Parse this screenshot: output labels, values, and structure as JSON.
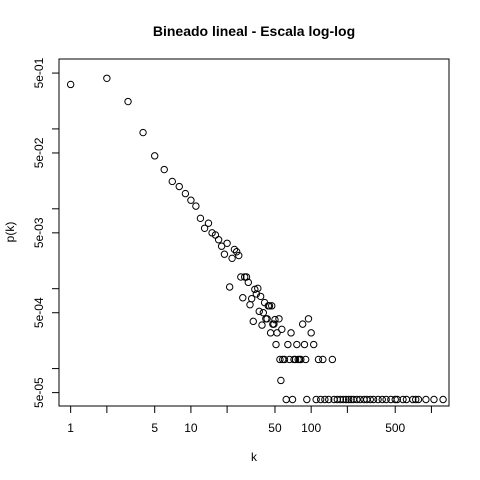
{
  "chart_data": {
    "type": "scatter",
    "title": "Bineado lineal - Escala log-log",
    "xlabel": "k",
    "ylabel": "p(k)",
    "x_scale": "log",
    "y_scale": "log",
    "xlim": [
      0.8,
      1400
    ],
    "ylim": [
      3.4e-05,
      0.75
    ],
    "x_ticks": [
      {
        "value": 1,
        "label": "1"
      },
      {
        "value": 2,
        "label": ""
      },
      {
        "value": 5,
        "label": "5"
      },
      {
        "value": 10,
        "label": "10"
      },
      {
        "value": 20,
        "label": ""
      },
      {
        "value": 50,
        "label": "50"
      },
      {
        "value": 100,
        "label": "100"
      },
      {
        "value": 200,
        "label": ""
      },
      {
        "value": 500,
        "label": "500"
      },
      {
        "value": 1000,
        "label": ""
      }
    ],
    "y_ticks": [
      {
        "value": 0.5,
        "label": "5e-01"
      },
      {
        "value": 0.1,
        "label": ""
      },
      {
        "value": 0.05,
        "label": "5e-02"
      },
      {
        "value": 0.01,
        "label": ""
      },
      {
        "value": 0.005,
        "label": "5e-03"
      },
      {
        "value": 0.001,
        "label": ""
      },
      {
        "value": 0.0005,
        "label": "5e-04"
      },
      {
        "value": 0.0001,
        "label": ""
      },
      {
        "value": 5e-05,
        "label": "5e-05"
      }
    ],
    "grid": false,
    "legend": "none",
    "points": [
      [
        1,
        0.36
      ],
      [
        2,
        0.43
      ],
      [
        3,
        0.22
      ],
      [
        4,
        0.09
      ],
      [
        5,
        0.046
      ],
      [
        6,
        0.031
      ],
      [
        7,
        0.022
      ],
      [
        8,
        0.019
      ],
      [
        9,
        0.0155
      ],
      [
        10,
        0.0128
      ],
      [
        11,
        0.0108
      ],
      [
        12,
        0.0076
      ],
      [
        13,
        0.0057
      ],
      [
        14,
        0.0066
      ],
      [
        15,
        0.005
      ],
      [
        16,
        0.0047
      ],
      [
        17,
        0.0041
      ],
      [
        18,
        0.0034
      ],
      [
        19,
        0.0027
      ],
      [
        20,
        0.0037
      ],
      [
        21,
        0.00105
      ],
      [
        22,
        0.0024
      ],
      [
        23,
        0.0031
      ],
      [
        24,
        0.0029
      ],
      [
        25,
        0.0026
      ],
      [
        26,
        0.0014
      ],
      [
        27,
        0.00077
      ],
      [
        28,
        0.0014
      ],
      [
        29,
        0.0014
      ],
      [
        30,
        0.0012
      ],
      [
        31,
        0.00063
      ],
      [
        32,
        0.00075
      ],
      [
        33,
        0.00039
      ],
      [
        34,
        0.00098
      ],
      [
        35,
        0.00086
      ],
      [
        36,
        0.00101
      ],
      [
        37,
        0.00052
      ],
      [
        38,
        0.0008
      ],
      [
        39,
        0.00035
      ],
      [
        40,
        0.0005
      ],
      [
        41,
        0.00067
      ],
      [
        42,
        0.00042
      ],
      [
        43,
        0.00042
      ],
      [
        44,
        0.00061
      ],
      [
        45,
        0.00061
      ],
      [
        46,
        0.00028
      ],
      [
        47,
        0.00061
      ],
      [
        48,
        0.00036
      ],
      [
        49,
        0.00036
      ],
      [
        50,
        0.00041
      ],
      [
        51,
        0.0002
      ],
      [
        52,
        0.00028
      ],
      [
        54,
        0.00042
      ],
      [
        55,
        0.00013
      ],
      [
        56,
        7.1e-05
      ],
      [
        57,
        0.00031
      ],
      [
        58,
        0.00013
      ],
      [
        60,
        0.00013
      ],
      [
        62,
        4.1e-05
      ],
      [
        64,
        0.0002
      ],
      [
        66,
        0.00013
      ],
      [
        68,
        0.00028
      ],
      [
        70,
        4.1e-05
      ],
      [
        72,
        0.00013
      ],
      [
        74,
        0.00013
      ],
      [
        76,
        0.0002
      ],
      [
        78,
        0.00013
      ],
      [
        80,
        0.00013
      ],
      [
        82,
        0.00013
      ],
      [
        85,
        0.00036
      ],
      [
        88,
        0.0002
      ],
      [
        90,
        0.00013
      ],
      [
        92,
        4.1e-05
      ],
      [
        95,
        0.00042
      ],
      [
        100,
        0.00028
      ],
      [
        105,
        0.0002
      ],
      [
        110,
        4.1e-05
      ],
      [
        115,
        0.00013
      ],
      [
        120,
        4.1e-05
      ],
      [
        125,
        0.00013
      ],
      [
        130,
        4.1e-05
      ],
      [
        140,
        4.1e-05
      ],
      [
        150,
        0.00013
      ],
      [
        155,
        4.1e-05
      ],
      [
        165,
        4.1e-05
      ],
      [
        175,
        4.1e-05
      ],
      [
        185,
        4.1e-05
      ],
      [
        195,
        4.1e-05
      ],
      [
        205,
        4.1e-05
      ],
      [
        215,
        4.1e-05
      ],
      [
        225,
        4.1e-05
      ],
      [
        240,
        4.1e-05
      ],
      [
        255,
        4.1e-05
      ],
      [
        275,
        4.1e-05
      ],
      [
        290,
        4.1e-05
      ],
      [
        310,
        4.1e-05
      ],
      [
        330,
        4.1e-05
      ],
      [
        360,
        4.1e-05
      ],
      [
        390,
        4.1e-05
      ],
      [
        420,
        4.1e-05
      ],
      [
        460,
        4.1e-05
      ],
      [
        500,
        4.1e-05
      ],
      [
        520,
        4.1e-05
      ],
      [
        580,
        4.1e-05
      ],
      [
        620,
        4.1e-05
      ],
      [
        700,
        4.1e-05
      ],
      [
        740,
        4.1e-05
      ],
      [
        780,
        4.1e-05
      ],
      [
        900,
        4.1e-05
      ],
      [
        1050,
        4.1e-05
      ],
      [
        1250,
        4.1e-05
      ]
    ]
  }
}
